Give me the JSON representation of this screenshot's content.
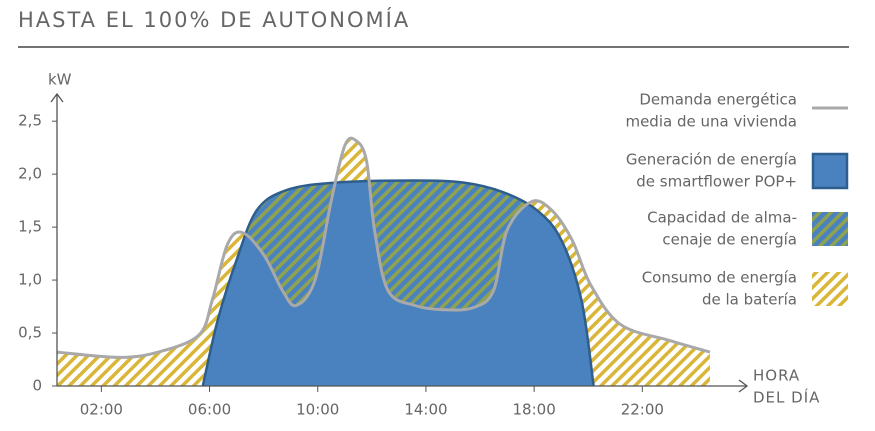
{
  "chart_data": {
    "type": "area",
    "title": "HASTA EL 100% DE AUTONOMÍA",
    "y_label": "kW",
    "x_label": [
      "HORA",
      "DEL DÍA"
    ],
    "xlim": [
      0.36,
      25.5
    ],
    "ylim": [
      0,
      2.7
    ],
    "xticks": [
      {
        "value": 2,
        "label": "02:00"
      },
      {
        "value": 6,
        "label": "06:00"
      },
      {
        "value": 10,
        "label": "10:00"
      },
      {
        "value": 14,
        "label": "14:00"
      },
      {
        "value": 18,
        "label": "18:00"
      },
      {
        "value": 22,
        "label": "22:00"
      }
    ],
    "yticks": [
      0,
      {
        "value": 0.5,
        "label": "0,5"
      },
      {
        "value": 1,
        "label": "1,0"
      },
      {
        "value": 1.5,
        "label": "1,5"
      },
      {
        "value": 2,
        "label": "2,0"
      },
      {
        "value": 2.5,
        "label": "2,5"
      }
    ],
    "series": [
      {
        "name": [
          "Demanda energética",
          "media de una vivienda"
        ],
        "color": "#a9a9a9",
        "x": [
          0.36,
          2.65,
          4.1,
          5.6,
          6.1,
          6.65,
          7.2,
          8,
          8.7,
          9.2,
          9.9,
          10.5,
          11.0,
          11.4,
          11.8,
          12.1,
          12.6,
          13.6,
          14.65,
          15.75,
          16.5,
          17,
          17.9,
          18.65,
          19.4,
          20.1,
          21.2,
          23,
          24.5
        ],
        "values": [
          0.32,
          0.27,
          0.32,
          0.48,
          0.81,
          1.33,
          1.45,
          1.24,
          0.9,
          0.76,
          1.0,
          1.75,
          2.27,
          2.32,
          2.13,
          1.47,
          0.9,
          0.76,
          0.72,
          0.74,
          0.9,
          1.47,
          1.74,
          1.66,
          1.38,
          0.95,
          0.58,
          0.43,
          0.32
        ]
      },
      {
        "name": [
          "Generación de energía",
          "de smartflower POP+"
        ],
        "color": "#4a82bf",
        "edge_color": "#2d5e8e",
        "x": [
          5.75,
          6.3,
          7,
          7.75,
          8.85,
          10.65,
          13.55,
          15.4,
          16.85,
          18.1,
          19,
          19.75,
          20.2
        ],
        "values": [
          0,
          0.62,
          1.19,
          1.66,
          1.85,
          1.92,
          1.94,
          1.92,
          1.83,
          1.66,
          1.38,
          0.81,
          0
        ]
      }
    ],
    "regions": [
      {
        "name": [
          "Capacidad de alma-",
          "cenaje de energía"
        ],
        "colors": [
          "#4a82bf",
          "#8fa24e"
        ]
      },
      {
        "name": [
          "Consumo de energía",
          "de la batería"
        ],
        "colors": [
          "#ffffff",
          "#d9b637"
        ]
      }
    ]
  }
}
